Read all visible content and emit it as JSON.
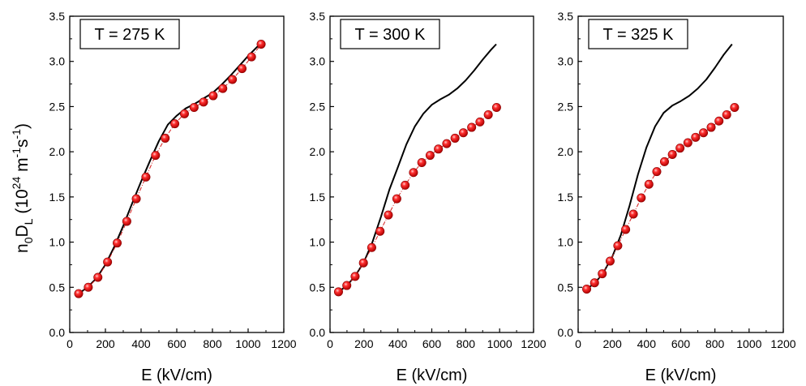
{
  "figure": {
    "ylabel": {
      "base": "n",
      "sub0": "0",
      "d": "D",
      "subL": "L",
      "open": " (10",
      "exp24": "24",
      "m": " m",
      "expm1a": "-1",
      "s": "s",
      "expm1b": "-1",
      "close": ")"
    }
  },
  "chart_data": [
    {
      "type": "line",
      "annotation": "T = 275 K",
      "xlabel": "E (kV/cm)",
      "xlim": [
        0,
        1200
      ],
      "ylim": [
        0,
        3.5
      ],
      "xticks": [
        0,
        200,
        400,
        600,
        800,
        1000,
        1200
      ],
      "yticks": [
        0.0,
        0.5,
        1.0,
        1.5,
        2.0,
        2.5,
        3.0,
        3.5
      ],
      "grid": false,
      "series": [
        {
          "style": "solid-black",
          "x": [
            50,
            100,
            150,
            200,
            250,
            300,
            350,
            400,
            450,
            500,
            550,
            600,
            650,
            700,
            750,
            800,
            850,
            900,
            950,
            1000,
            1050,
            1070
          ],
          "y": [
            0.43,
            0.5,
            0.6,
            0.75,
            0.95,
            1.18,
            1.43,
            1.67,
            1.9,
            2.12,
            2.3,
            2.4,
            2.48,
            2.53,
            2.59,
            2.65,
            2.74,
            2.84,
            2.95,
            3.06,
            3.16,
            3.19
          ]
        },
        {
          "style": "red-markers-dashdot",
          "x": [
            50,
            104,
            158,
            212,
            266,
            320,
            373,
            427,
            481,
            535,
            589,
            643,
            697,
            750,
            804,
            858,
            912,
            966,
            1019,
            1073
          ],
          "y": [
            0.43,
            0.5,
            0.61,
            0.78,
            0.99,
            1.23,
            1.48,
            1.72,
            1.96,
            2.15,
            2.31,
            2.42,
            2.49,
            2.55,
            2.62,
            2.7,
            2.8,
            2.92,
            3.05,
            3.19
          ]
        }
      ]
    },
    {
      "type": "line",
      "annotation": "T = 300 K",
      "xlabel": "E (kV/cm)",
      "xlim": [
        0,
        1200
      ],
      "ylim": [
        0,
        3.5
      ],
      "xticks": [
        0,
        200,
        400,
        600,
        800,
        1000,
        1200
      ],
      "yticks": [
        0.0,
        0.5,
        1.0,
        1.5,
        2.0,
        2.5,
        3.0,
        3.5
      ],
      "grid": false,
      "series": [
        {
          "style": "solid-black",
          "x": [
            50,
            100,
            150,
            200,
            250,
            300,
            350,
            400,
            450,
            500,
            550,
            600,
            650,
            700,
            750,
            800,
            850,
            900,
            950,
            980
          ],
          "y": [
            0.45,
            0.52,
            0.63,
            0.78,
            1.0,
            1.28,
            1.58,
            1.83,
            2.08,
            2.28,
            2.42,
            2.52,
            2.58,
            2.63,
            2.7,
            2.79,
            2.9,
            3.02,
            3.13,
            3.19
          ]
        },
        {
          "style": "red-markers-dashdot",
          "x": [
            50,
            99,
            148,
            197,
            246,
            295,
            344,
            394,
            443,
            492,
            541,
            590,
            639,
            688,
            737,
            786,
            835,
            884,
            933,
            982
          ],
          "y": [
            0.45,
            0.52,
            0.62,
            0.77,
            0.94,
            1.12,
            1.3,
            1.48,
            1.63,
            1.77,
            1.88,
            1.96,
            2.03,
            2.09,
            2.15,
            2.21,
            2.27,
            2.33,
            2.41,
            2.49
          ]
        }
      ]
    },
    {
      "type": "line",
      "annotation": "T = 325 K",
      "xlabel": "E (kV/cm)",
      "xlim": [
        0,
        1200
      ],
      "ylim": [
        0,
        3.5
      ],
      "xticks": [
        0,
        200,
        400,
        600,
        800,
        1000,
        1200
      ],
      "yticks": [
        0.0,
        0.5,
        1.0,
        1.5,
        2.0,
        2.5,
        3.0,
        3.5
      ],
      "grid": false,
      "series": [
        {
          "style": "solid-black",
          "x": [
            50,
            100,
            150,
            200,
            250,
            300,
            350,
            400,
            450,
            500,
            550,
            600,
            650,
            700,
            750,
            800,
            850,
            900
          ],
          "y": [
            0.48,
            0.55,
            0.67,
            0.84,
            1.08,
            1.4,
            1.75,
            2.05,
            2.28,
            2.43,
            2.51,
            2.56,
            2.62,
            2.7,
            2.8,
            2.93,
            3.07,
            3.19
          ]
        },
        {
          "style": "red-markers-dashdot",
          "x": [
            50,
            96,
            141,
            187,
            232,
            278,
            323,
            369,
            414,
            460,
            505,
            551,
            596,
            642,
            687,
            733,
            778,
            824,
            869,
            915
          ],
          "y": [
            0.48,
            0.55,
            0.65,
            0.79,
            0.96,
            1.14,
            1.31,
            1.49,
            1.64,
            1.78,
            1.89,
            1.97,
            2.04,
            2.1,
            2.16,
            2.21,
            2.27,
            2.34,
            2.41,
            2.49
          ]
        }
      ]
    }
  ]
}
